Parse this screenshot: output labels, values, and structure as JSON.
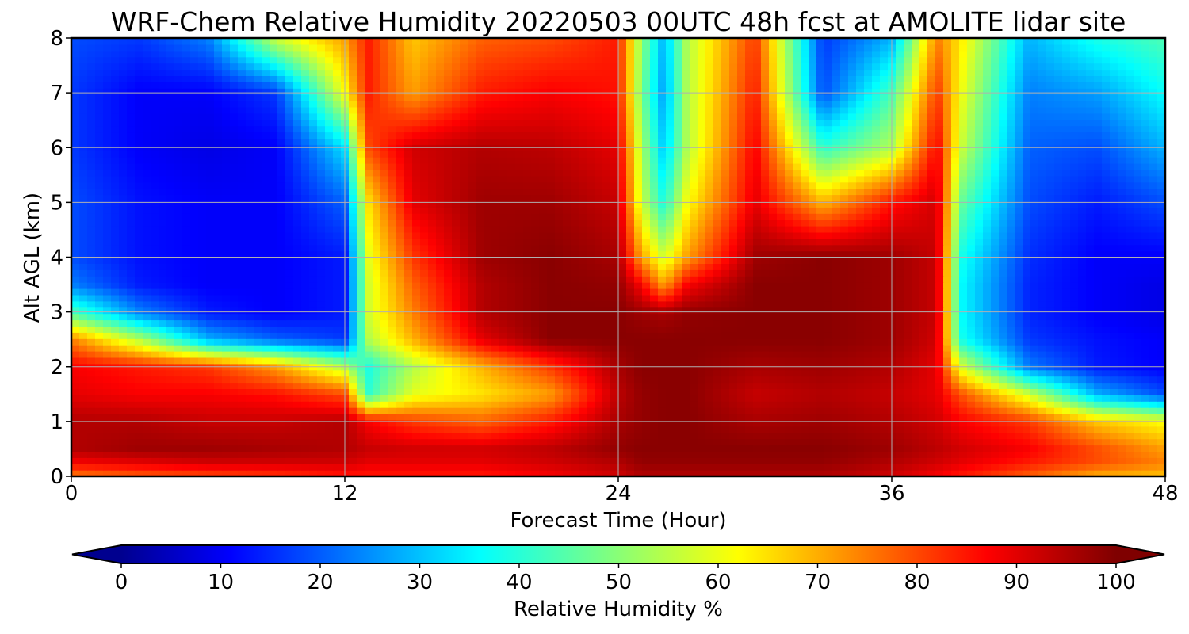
{
  "chart_data": {
    "type": "heatmap",
    "subtype": "filled-contour time-height cross-section",
    "title": "WRF-Chem Relative Humidity 20220503 00UTC 48h fcst at AMOLITE lidar site",
    "xlabel": "Forecast Time (Hour)",
    "ylabel": "Alt AGL (km)",
    "xlim": [
      0,
      48
    ],
    "ylim": [
      0,
      8
    ],
    "xticks": [
      "0",
      "12",
      "24",
      "36",
      "48"
    ],
    "yticks": [
      "0",
      "1",
      "2",
      "3",
      "4",
      "5",
      "6",
      "7",
      "8"
    ],
    "grid": true,
    "colormap": "jet",
    "x": [
      0,
      3,
      6,
      9,
      12,
      13,
      15,
      18,
      21,
      24,
      25,
      26,
      27,
      30,
      33,
      36,
      38,
      39,
      42,
      45,
      48
    ],
    "y": [
      0,
      0.25,
      0.5,
      1,
      1.5,
      2,
      2.5,
      3,
      3.5,
      4,
      5,
      6,
      7,
      8
    ],
    "z": [
      [
        75,
        78,
        80,
        82,
        85,
        85,
        85,
        85,
        88,
        92,
        95,
        95,
        95,
        95,
        95,
        92,
        88,
        85,
        78,
        70,
        68
      ],
      [
        88,
        90,
        92,
        92,
        92,
        90,
        90,
        90,
        92,
        95,
        98,
        98,
        98,
        98,
        98,
        95,
        92,
        90,
        85,
        80,
        75
      ],
      [
        95,
        97,
        97,
        96,
        95,
        93,
        92,
        92,
        94,
        98,
        99,
        99,
        99,
        99,
        99,
        97,
        94,
        92,
        88,
        80,
        72
      ],
      [
        95,
        95,
        93,
        93,
        95,
        88,
        82,
        78,
        85,
        96,
        98,
        99,
        99,
        96,
        97,
        95,
        92,
        88,
        82,
        68,
        62
      ],
      [
        90,
        88,
        88,
        86,
        80,
        42,
        60,
        65,
        72,
        94,
        98,
        99,
        99,
        93,
        95,
        93,
        90,
        80,
        58,
        30,
        20
      ],
      [
        88,
        85,
        82,
        72,
        55,
        40,
        55,
        70,
        82,
        96,
        99,
        99,
        99,
        96,
        97,
        95,
        90,
        60,
        25,
        15,
        12
      ],
      [
        75,
        55,
        30,
        22,
        18,
        55,
        70,
        90,
        99,
        99,
        99,
        99,
        99,
        99,
        99,
        97,
        92,
        40,
        18,
        14,
        12
      ],
      [
        45,
        25,
        15,
        12,
        15,
        58,
        75,
        95,
        99,
        99,
        97,
        96,
        98,
        99,
        99,
        97,
        93,
        38,
        16,
        12,
        10
      ],
      [
        25,
        15,
        12,
        12,
        15,
        58,
        78,
        95,
        99,
        98,
        88,
        72,
        88,
        99,
        99,
        97,
        93,
        38,
        16,
        12,
        10
      ],
      [
        20,
        14,
        12,
        12,
        15,
        60,
        82,
        97,
        99,
        96,
        72,
        58,
        72,
        97,
        99,
        97,
        93,
        40,
        17,
        12,
        12
      ],
      [
        20,
        14,
        12,
        12,
        22,
        65,
        90,
        97,
        97,
        93,
        58,
        40,
        62,
        90,
        70,
        86,
        92,
        48,
        20,
        15,
        20
      ],
      [
        18,
        12,
        10,
        12,
        35,
        80,
        92,
        95,
        94,
        90,
        55,
        32,
        55,
        88,
        42,
        55,
        88,
        58,
        22,
        20,
        30
      ],
      [
        18,
        12,
        12,
        18,
        62,
        85,
        72,
        85,
        88,
        86,
        50,
        28,
        55,
        85,
        20,
        45,
        82,
        62,
        25,
        28,
        38
      ],
      [
        20,
        18,
        25,
        58,
        72,
        85,
        68,
        78,
        80,
        85,
        52,
        30,
        55,
        82,
        18,
        30,
        75,
        65,
        30,
        40,
        45
      ]
    ],
    "colorbar": {
      "label": "Relative Humidity %",
      "ticks": [
        "0",
        "10",
        "20",
        "30",
        "40",
        "50",
        "60",
        "70",
        "80",
        "90",
        "100"
      ],
      "vmin": 0,
      "vmax": 100,
      "extend": "both",
      "orientation": "horizontal"
    }
  }
}
